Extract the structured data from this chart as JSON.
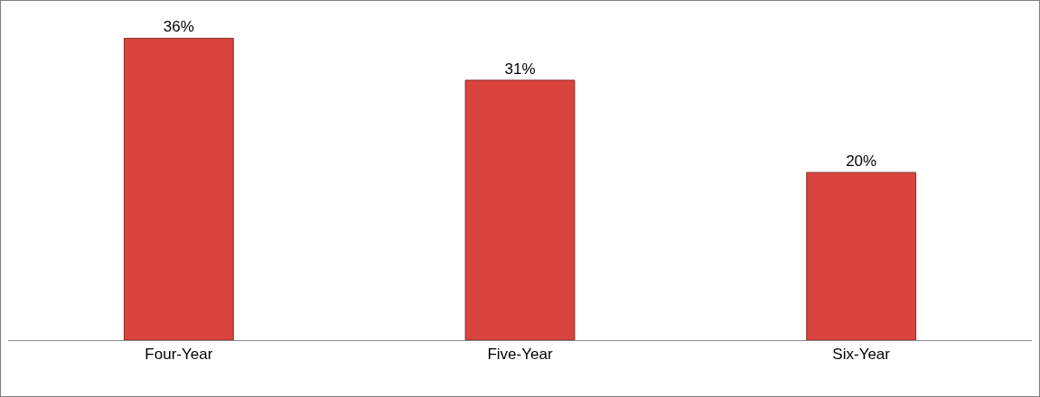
{
  "chart_data": {
    "type": "bar",
    "categories": [
      "Four-Year",
      "Five-Year",
      "Six-Year"
    ],
    "values": [
      36,
      31,
      20
    ],
    "value_labels": [
      "36%",
      "31%",
      "20%"
    ],
    "color": "#d9443e",
    "grid": false,
    "legend": false
  }
}
